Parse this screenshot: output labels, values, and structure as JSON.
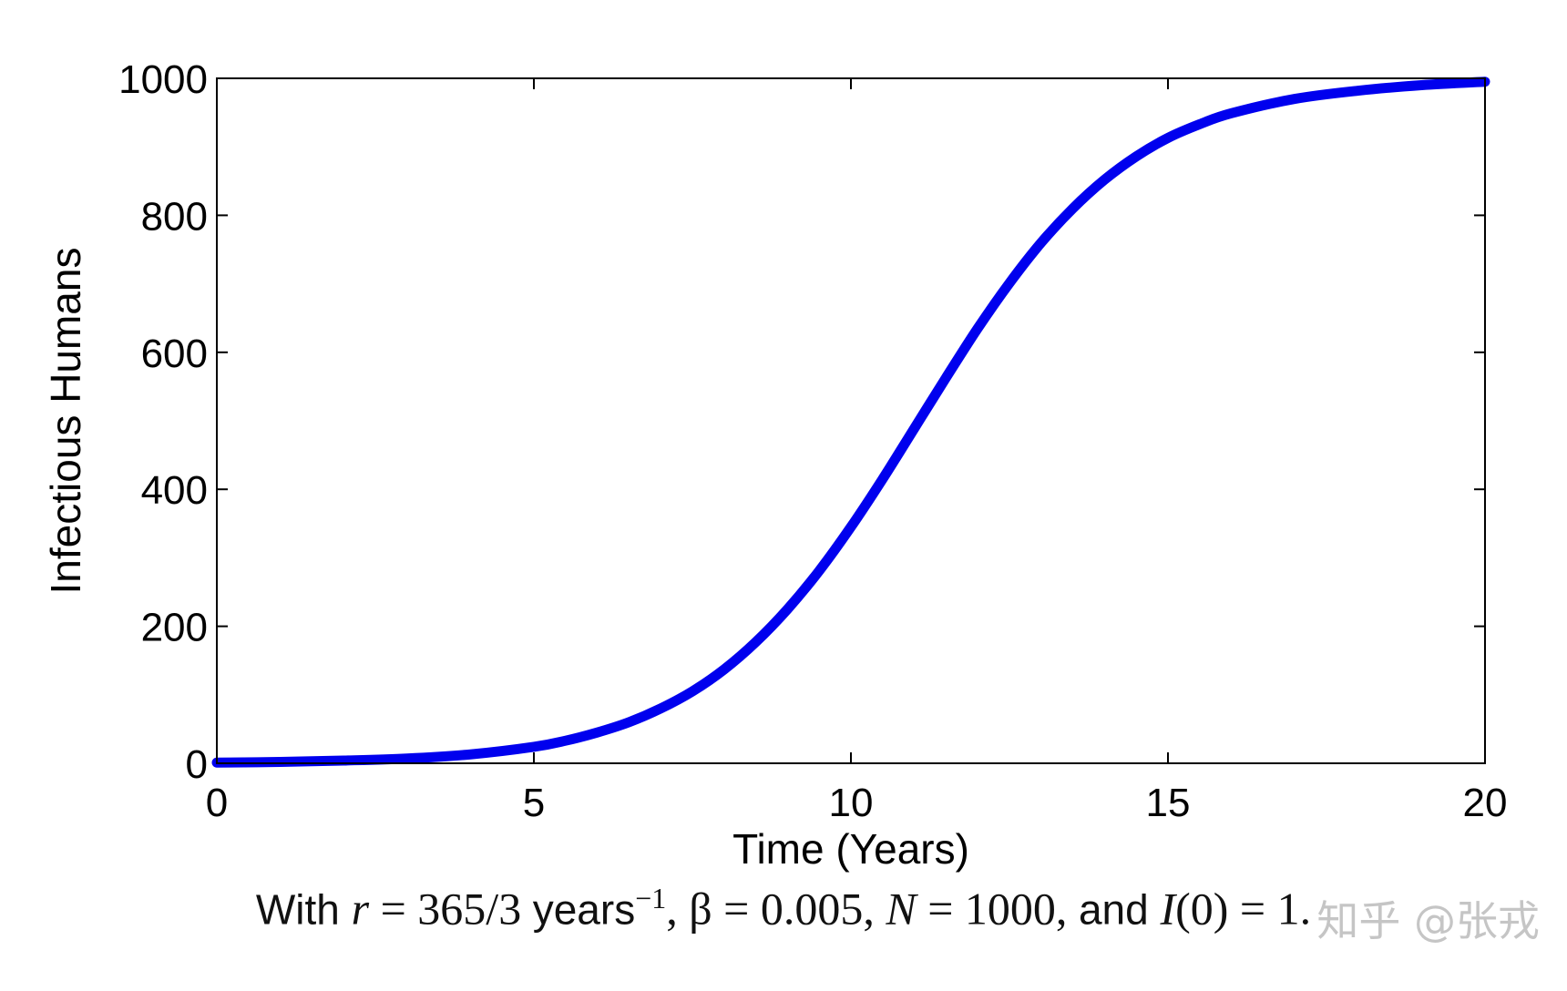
{
  "chart_data": {
    "type": "line",
    "xlabel": "Time (Years)",
    "ylabel": "Infectious Humans",
    "xlim": [
      0,
      20
    ],
    "ylim": [
      0,
      1000
    ],
    "xticks": [
      0,
      5,
      10,
      15,
      20
    ],
    "yticks": [
      0,
      200,
      400,
      600,
      800,
      1000
    ],
    "grid": false,
    "legend": "none",
    "series": [
      {
        "color": "#0000ee",
        "x": [
          0,
          1,
          2,
          3,
          4,
          5,
          5.5,
          6,
          6.5,
          7,
          7.5,
          8,
          8.5,
          9,
          9.5,
          10,
          10.5,
          11,
          11.5,
          12,
          12.5,
          13,
          13.5,
          14,
          14.5,
          15,
          15.5,
          16,
          17,
          18,
          19,
          20
        ],
        "y": [
          1,
          2,
          4,
          7,
          13,
          24,
          33,
          45,
          60,
          80,
          105,
          137,
          177,
          225,
          281,
          345,
          415,
          489,
          563,
          635,
          701,
          760,
          810,
          852,
          886,
          913,
          933,
          949,
          970,
          982,
          990,
          995
        ]
      }
    ]
  },
  "caption": {
    "prefix": "With ",
    "r_symbol": "r",
    "r_value": " = 365/3 ",
    "r_unit": "years",
    "r_exp": "−1",
    "beta_part": ", β = 0.005, ",
    "n_symbol": "N",
    "n_value": " = 1000, ",
    "and_word": "and ",
    "i_symbol": "I",
    "i_value": "(0) = 1."
  },
  "watermark": "知乎 @张戎"
}
